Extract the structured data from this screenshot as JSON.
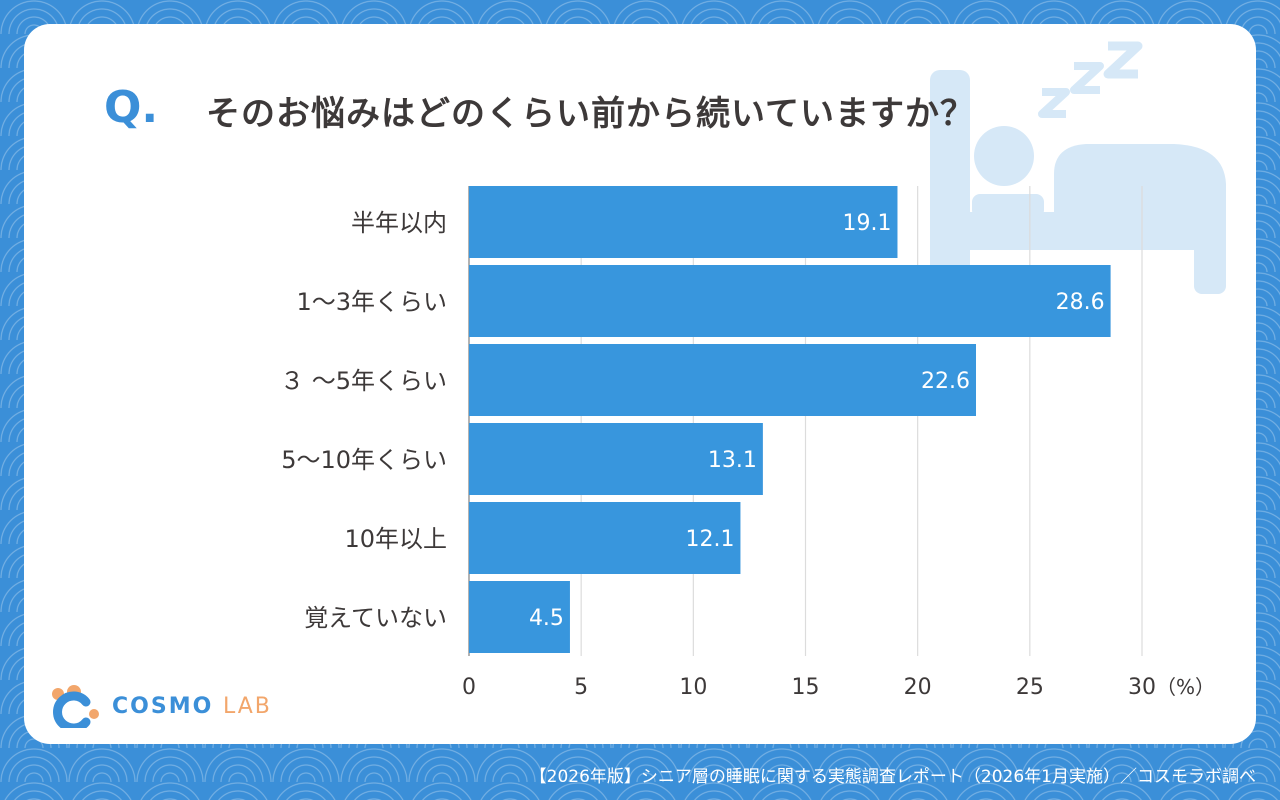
{
  "question": {
    "marker": "Q.",
    "text": "そのお悩みはどのくらい前から続いていますか？"
  },
  "chart_data": {
    "type": "bar",
    "orientation": "horizontal",
    "categories": [
      "半年以内",
      "1～3年くらい",
      "３ ～5年くらい",
      "5～10年くらい",
      "10年以上",
      "覚えていない"
    ],
    "values": [
      19.1,
      28.6,
      22.6,
      13.1,
      12.1,
      4.5
    ],
    "xlim": [
      0,
      30
    ],
    "xticks": [
      0,
      5,
      10,
      15,
      20,
      25,
      30
    ],
    "unit_label": "（%）",
    "grid": true,
    "bar_color": "#3896dd"
  },
  "logo": {
    "name": "COSMO",
    "suffix": "LAB"
  },
  "footer": "【2026年版】シニア層の睡眠に関する実態調査レポート（2026年1月実施）／コスモラボ調べ",
  "colors": {
    "accent": "#3b8fd8",
    "illustration": "#d6e8f7",
    "logo_orange": "#f2a66b"
  }
}
